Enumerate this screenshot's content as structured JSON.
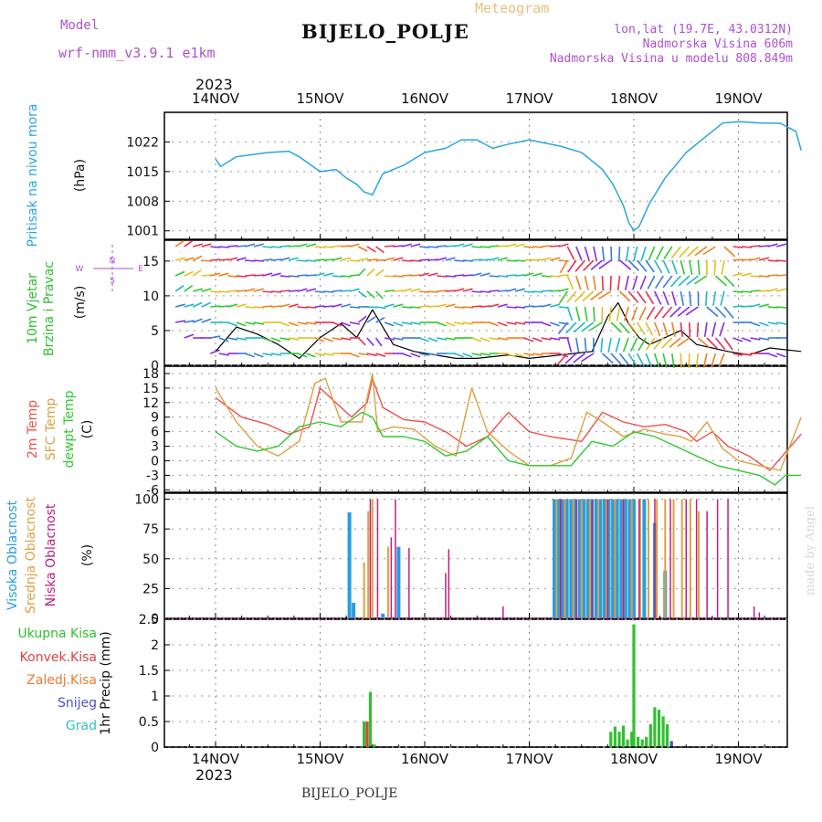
{
  "header": {
    "model_label": "Model",
    "model_name": "wrf-nmm_v3.9.1 e1km",
    "station": "BIJELO_POLJE",
    "meteogram": "Meteogram",
    "lonlat": "lon,lat (19.7E, 43.0312N)",
    "elevation": "Nadmorska Visina 606m",
    "model_elevation": "Nadmorska Visina u modelu 808.849m",
    "year_top": "2023",
    "year_bottom": "2023",
    "footer_station": "BIJELO_POLJE",
    "watermark": "made by Angel"
  },
  "colors": {
    "pressure": "#2aa6e0",
    "t2m": "#f05050",
    "tsfc": "#e0a040",
    "dewpt": "#30c830",
    "cloud_high": "#2a9de0",
    "cloud_mid": "#e0a040",
    "cloud_low": "#c02080",
    "rain_total": "#30c030",
    "rain_conv": "#e04040",
    "rain_frz": "#f07830",
    "snow": "#5050d0",
    "hail": "#30c0c0",
    "wind_label": "#30c030",
    "wind_dir_label": "#b050d0"
  },
  "chart_data": [
    {
      "panel": "pressure",
      "type": "line",
      "y_labels": [
        "Pritisak na nivou mora",
        "(hPa)"
      ],
      "ylim": [
        999,
        1029
      ],
      "yticks": [
        1001,
        1008,
        1015,
        1022
      ],
      "x_day_labels": [
        "14NOV",
        "15NOV",
        "16NOV",
        "17NOV",
        "18NOV",
        "19NOV"
      ],
      "series": [
        {
          "x": [
            0.0,
            0.05,
            0.2,
            0.5,
            0.7,
            0.8,
            1.0,
            1.15,
            1.25,
            1.35,
            1.42,
            1.5,
            1.6,
            1.8,
            2.0,
            2.2,
            2.35,
            2.5,
            2.65,
            2.8,
            3.0,
            3.3,
            3.5,
            3.7,
            3.8,
            3.9,
            3.95,
            4.0,
            4.05,
            4.15,
            4.3,
            4.5,
            4.65,
            4.75,
            4.85,
            5.0,
            5.2,
            5.4,
            5.55,
            5.6
          ],
          "y": [
            1018,
            1016.2,
            1018.5,
            1019.5,
            1019.8,
            1018.5,
            1015,
            1015.5,
            1013.5,
            1012,
            1010.2,
            1009.5,
            1014.5,
            1016.5,
            1019.5,
            1020.5,
            1022.5,
            1022.5,
            1020.5,
            1021.5,
            1022.5,
            1021,
            1019.5,
            1015.5,
            1012,
            1007,
            1003,
            1001,
            1002,
            1007.5,
            1013.5,
            1019.5,
            1022.5,
            1024.5,
            1026.5,
            1026.8,
            1026.5,
            1026.4,
            1024.5,
            1020
          ]
        }
      ]
    },
    {
      "panel": "wind",
      "type": "line",
      "y_labels": [
        "10m Vjetar",
        "Brzina i Pravac",
        "(m/s)"
      ],
      "direction_labels": {
        "n": "N",
        "s": "S",
        "w": "W",
        "e": "E",
        "up": "^",
        "down": "v",
        "arrow_up": "<-",
        "arrow_down": "->",
        "bar": "|",
        "dash_left": "<-",
        "dash_right": "->"
      },
      "ylim": [
        0,
        18
      ],
      "yticks": [
        0,
        5,
        10,
        15
      ],
      "series": [
        {
          "name": "speed",
          "x": [
            0.0,
            0.2,
            0.4,
            0.6,
            0.8,
            1.0,
            1.2,
            1.35,
            1.5,
            1.7,
            1.9,
            2.1,
            2.3,
            2.5,
            2.8,
            3.0,
            3.3,
            3.6,
            3.75,
            3.85,
            3.95,
            4.05,
            4.15,
            4.3,
            4.45,
            4.6,
            4.75,
            4.9,
            5.1,
            5.3,
            5.6
          ],
          "y": [
            2,
            5.5,
            4.5,
            3,
            1,
            4,
            6,
            4,
            8,
            3,
            2,
            1.5,
            1,
            1,
            1.5,
            1,
            1.5,
            2,
            7,
            9,
            6,
            4,
            3,
            4,
            5,
            3,
            2.5,
            2,
            1.5,
            2.5,
            2
          ]
        }
      ]
    },
    {
      "panel": "temperature",
      "type": "line",
      "y_labels": [
        "2m Temp",
        "SFC Temp",
        "dewpt Temp",
        "(C)"
      ],
      "ylim": [
        -6.5,
        19.5
      ],
      "yticks": [
        -6,
        -3,
        0,
        3,
        6,
        9,
        12,
        15,
        18
      ],
      "series": [
        {
          "name": "2m Temp",
          "x": [
            0.0,
            0.25,
            0.5,
            0.7,
            0.9,
            1.0,
            1.15,
            1.3,
            1.45,
            1.5,
            1.6,
            1.8,
            2.0,
            2.2,
            2.4,
            2.6,
            2.8,
            3.0,
            3.2,
            3.5,
            3.7,
            3.9,
            4.1,
            4.3,
            4.5,
            4.6,
            4.75,
            4.9,
            5.1,
            5.3,
            5.5,
            5.6
          ],
          "y": [
            13,
            9,
            7.5,
            5.5,
            7,
            15,
            12,
            9,
            12,
            17,
            11,
            8.5,
            8,
            6,
            3,
            5,
            10,
            6,
            5,
            4,
            10,
            8,
            7,
            7.5,
            6,
            4,
            6,
            3,
            1,
            -2,
            3,
            5.5
          ]
        },
        {
          "name": "SFC Temp",
          "x": [
            0.0,
            0.2,
            0.4,
            0.6,
            0.8,
            0.95,
            1.05,
            1.2,
            1.4,
            1.5,
            1.55,
            1.7,
            1.9,
            2.1,
            2.3,
            2.45,
            2.6,
            2.8,
            3.0,
            3.2,
            3.4,
            3.55,
            3.7,
            3.9,
            4.1,
            4.3,
            4.45,
            4.55,
            4.7,
            4.85,
            5.0,
            5.2,
            5.4,
            5.6
          ],
          "y": [
            15,
            8,
            3,
            1,
            4,
            16,
            17,
            8,
            8,
            18,
            6,
            7,
            6.5,
            3,
            1,
            15,
            6,
            2,
            -1,
            -1,
            0.5,
            10,
            8,
            5,
            6.5,
            5.5,
            5,
            4,
            8,
            2.5,
            0,
            -1,
            -2,
            9
          ]
        },
        {
          "name": "dewpt Temp",
          "x": [
            0.0,
            0.2,
            0.4,
            0.6,
            0.8,
            1.0,
            1.2,
            1.4,
            1.5,
            1.6,
            1.8,
            2.0,
            2.2,
            2.4,
            2.6,
            2.8,
            3.0,
            3.2,
            3.4,
            3.6,
            3.8,
            4.0,
            4.2,
            4.4,
            4.6,
            4.8,
            5.0,
            5.2,
            5.35,
            5.45,
            5.6
          ],
          "y": [
            6,
            3,
            2,
            3,
            7,
            8,
            7,
            10,
            9,
            5,
            5,
            4,
            1,
            2,
            5,
            0,
            -1,
            -1,
            -1,
            4,
            3,
            6,
            5,
            3,
            1,
            -1,
            -2,
            -3,
            -5,
            -3,
            -3
          ]
        }
      ]
    },
    {
      "panel": "cloud",
      "type": "bar",
      "y_labels": [
        "Visoka Oblacnost",
        "Srednja Oblacnost",
        "Niska Oblacnost",
        "(%)"
      ],
      "ylim": [
        0,
        105
      ],
      "yticks": [
        0,
        25,
        50,
        75,
        100
      ],
      "series": [
        {
          "name": "Visoka Oblacnost",
          "x": [
            1.28,
            1.32,
            1.6,
            1.75,
            3.24,
            3.28,
            3.32,
            3.36,
            3.4,
            3.44,
            3.48,
            3.52,
            3.56,
            3.6,
            3.64,
            3.68,
            3.72,
            3.76,
            3.8,
            3.84,
            3.88,
            3.92,
            3.96,
            4.0,
            4.1,
            4.2,
            4.3
          ],
          "y": [
            89,
            13,
            4,
            60,
            100,
            100,
            100,
            100,
            100,
            100,
            100,
            100,
            100,
            100,
            100,
            100,
            100,
            100,
            100,
            100,
            100,
            100,
            100,
            100,
            100,
            80,
            40
          ]
        },
        {
          "name": "Srednja Oblacnost",
          "x": [
            1.42,
            1.46,
            1.5,
            1.65,
            3.26,
            3.34,
            3.42,
            3.5,
            3.58,
            3.66,
            3.74,
            3.82,
            3.9,
            3.98,
            4.06,
            4.14,
            4.22,
            4.3,
            4.38,
            4.46,
            4.54,
            4.62
          ],
          "y": [
            47,
            90,
            100,
            60,
            100,
            100,
            100,
            100,
            100,
            100,
            100,
            100,
            100,
            100,
            100,
            100,
            100,
            100,
            100,
            100,
            100,
            90
          ]
        },
        {
          "name": "Niska Oblacnost",
          "x": [
            1.48,
            1.55,
            1.68,
            1.72,
            1.85,
            2.2,
            2.23,
            2.75,
            3.3,
            3.45,
            3.6,
            3.75,
            3.9,
            4.05,
            4.2,
            4.35,
            4.5,
            4.6,
            4.7,
            4.8,
            4.9,
            5.15,
            5.2
          ],
          "y": [
            100,
            100,
            68,
            100,
            59,
            38,
            58,
            10,
            100,
            100,
            100,
            100,
            100,
            100,
            100,
            100,
            100,
            100,
            90,
            100,
            100,
            10,
            5
          ]
        }
      ]
    },
    {
      "panel": "precip",
      "type": "bar",
      "y_labels": [
        "Ukupna Kisa",
        "Konvek.Kisa",
        "Zaledj.Kisa",
        "Snijeg",
        "Grad",
        "1hr Precip (mm)"
      ],
      "ylim": [
        0,
        2.5
      ],
      "yticks": [
        0,
        0.5,
        1,
        1.5,
        2,
        2.5
      ],
      "series": [
        {
          "name": "Ukupna Kisa",
          "x": [
            1.42,
            1.45,
            1.48,
            1.52,
            3.78,
            3.82,
            3.86,
            3.9,
            3.94,
            3.98,
            4.0,
            4.04,
            4.08,
            4.12,
            4.16,
            4.2,
            4.24,
            4.28,
            4.32,
            4.36
          ],
          "y": [
            0.5,
            0.5,
            1.08,
            0.05,
            0.3,
            0.4,
            0.3,
            0.42,
            0.15,
            0.3,
            2.4,
            0.2,
            0.15,
            0.2,
            0.45,
            0.78,
            0.73,
            0.6,
            0.45,
            0.1
          ]
        },
        {
          "name": "Konvek.Kisa",
          "x": [
            1.45
          ],
          "y": [
            0.5
          ]
        },
        {
          "name": "Snijeg",
          "x": [
            4.36
          ],
          "y": [
            0.12
          ]
        }
      ]
    }
  ]
}
